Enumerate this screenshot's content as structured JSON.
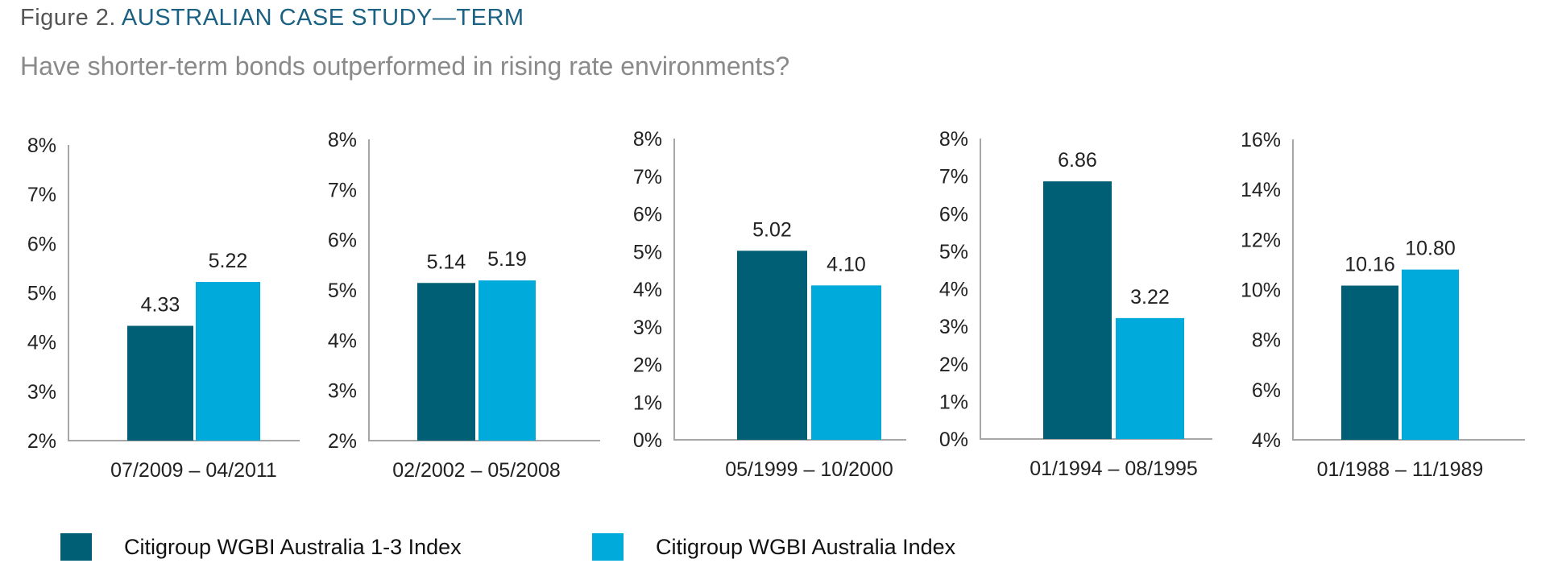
{
  "header": {
    "figure_number": "Figure 2.",
    "title": "AUSTRALIAN CASE STUDY—TERM",
    "subtitle": "Have shorter-term bonds outperformed in rising rate environments?"
  },
  "colors": {
    "series_dark": "#005f74",
    "series_light": "#00aadb",
    "axis": "#a6a6a6",
    "title_accent": "#1a6183"
  },
  "legend": [
    {
      "label": "Citigroup WGBI Australia 1-3 Index",
      "color": "#005f74"
    },
    {
      "label": "Citigroup WGBI Australia Index",
      "color": "#00aadb"
    }
  ],
  "chart_data": [
    {
      "type": "bar",
      "title": "",
      "categories": [
        "07/2009 – 04/2011"
      ],
      "series": [
        {
          "name": "Citigroup WGBI Australia 1-3 Index",
          "values": [
            4.33
          ],
          "labels": [
            "4.33"
          ]
        },
        {
          "name": "Citigroup WGBI Australia Index",
          "values": [
            5.22
          ],
          "labels": [
            "5.22"
          ]
        }
      ],
      "ylim": [
        2,
        8
      ],
      "yticks": [
        "2%",
        "3%",
        "4%",
        "5%",
        "6%",
        "7%",
        "8%"
      ],
      "ytick_values": [
        2,
        3,
        4,
        5,
        6,
        7,
        8
      ],
      "xlabel": "",
      "ylabel": "",
      "grid": false
    },
    {
      "type": "bar",
      "title": "",
      "categories": [
        "02/2002 – 05/2008"
      ],
      "series": [
        {
          "name": "Citigroup WGBI Australia 1-3 Index",
          "values": [
            5.14
          ],
          "labels": [
            "5.14"
          ]
        },
        {
          "name": "Citigroup WGBI Australia Index",
          "values": [
            5.19
          ],
          "labels": [
            "5.19"
          ]
        }
      ],
      "ylim": [
        2,
        8
      ],
      "yticks": [
        "2%",
        "3%",
        "4%",
        "5%",
        "6%",
        "7%",
        "8%"
      ],
      "ytick_values": [
        2,
        3,
        4,
        5,
        6,
        7,
        8
      ],
      "xlabel": "",
      "ylabel": "",
      "grid": false
    },
    {
      "type": "bar",
      "title": "",
      "categories": [
        "05/1999 – 10/2000"
      ],
      "series": [
        {
          "name": "Citigroup WGBI Australia 1-3 Index",
          "values": [
            5.02
          ],
          "labels": [
            "5.02"
          ]
        },
        {
          "name": "Citigroup WGBI Australia Index",
          "values": [
            4.1
          ],
          "labels": [
            "4.10"
          ]
        }
      ],
      "ylim": [
        0,
        8
      ],
      "yticks": [
        "0%",
        "1%",
        "2%",
        "3%",
        "4%",
        "5%",
        "6%",
        "7%",
        "8%"
      ],
      "ytick_values": [
        0,
        1,
        2,
        3,
        4,
        5,
        6,
        7,
        8
      ],
      "xlabel": "",
      "ylabel": "",
      "grid": false
    },
    {
      "type": "bar",
      "title": "",
      "categories": [
        "01/1994 – 08/1995"
      ],
      "series": [
        {
          "name": "Citigroup WGBI Australia 1-3 Index",
          "values": [
            6.86
          ],
          "labels": [
            "6.86"
          ]
        },
        {
          "name": "Citigroup WGBI Australia Index",
          "values": [
            3.22
          ],
          "labels": [
            "3.22"
          ]
        }
      ],
      "ylim": [
        0,
        8
      ],
      "yticks": [
        "0%",
        "1%",
        "2%",
        "3%",
        "4%",
        "5%",
        "6%",
        "7%",
        "8%"
      ],
      "ytick_values": [
        0,
        1,
        2,
        3,
        4,
        5,
        6,
        7,
        8
      ],
      "xlabel": "",
      "ylabel": "",
      "grid": false
    },
    {
      "type": "bar",
      "title": "",
      "categories": [
        "01/1988 – 11/1989"
      ],
      "series": [
        {
          "name": "Citigroup WGBI Australia 1-3 Index",
          "values": [
            10.16
          ],
          "labels": [
            "10.16"
          ]
        },
        {
          "name": "Citigroup WGBI Australia Index",
          "values": [
            10.8
          ],
          "labels": [
            "10.80"
          ]
        }
      ],
      "ylim": [
        4,
        16
      ],
      "yticks": [
        "4%",
        "6%",
        "8%",
        "10%",
        "12%",
        "14%",
        "16%"
      ],
      "ytick_values": [
        4,
        6,
        8,
        10,
        12,
        14,
        16
      ],
      "xlabel": "",
      "ylabel": "",
      "grid": false
    }
  ]
}
